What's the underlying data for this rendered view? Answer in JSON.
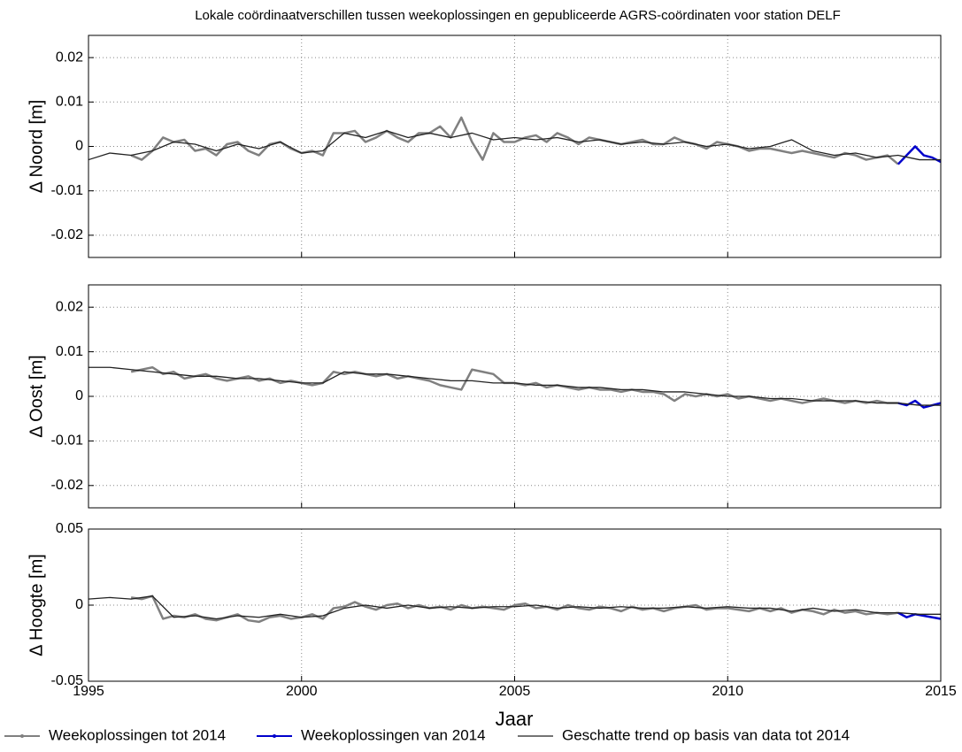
{
  "title": "Lokale coördinaatverschillen tussen weekoplossingen en gepubliceerde AGRS-coördinaten voor station DELF",
  "xlabel": "Jaar",
  "chart_data": [
    {
      "type": "line",
      "ylabel": "Δ Noord [m]",
      "xlim": [
        1995,
        2015
      ],
      "ylim": [
        -0.025,
        0.025
      ],
      "yticks": [
        -0.02,
        -0.01,
        0,
        0.01,
        0.02
      ],
      "grid": true,
      "series": [
        {
          "name": "Weekoplossingen tot 2014",
          "color": "#808080",
          "x": [
            1996,
            1996.25,
            1996.5,
            1996.75,
            1997,
            1997.25,
            1997.5,
            1997.75,
            1998,
            1998.25,
            1998.5,
            1998.75,
            1999,
            1999.25,
            1999.5,
            1999.75,
            2000,
            2000.25,
            2000.5,
            2000.75,
            2001,
            2001.25,
            2001.5,
            2001.75,
            2002,
            2002.25,
            2002.5,
            2002.75,
            2003,
            2003.25,
            2003.5,
            2003.75,
            2004,
            2004.25,
            2004.5,
            2004.75,
            2005,
            2005.25,
            2005.5,
            2005.75,
            2006,
            2006.25,
            2006.5,
            2006.75,
            2007,
            2007.25,
            2007.5,
            2007.75,
            2008,
            2008.25,
            2008.5,
            2008.75,
            2009,
            2009.25,
            2009.5,
            2009.75,
            2010,
            2010.25,
            2010.5,
            2010.75,
            2011,
            2011.25,
            2011.5,
            2011.75,
            2012,
            2012.25,
            2012.5,
            2012.75,
            2013,
            2013.25,
            2013.5,
            2013.75,
            2014
          ],
          "values": [
            -0.002,
            -0.003,
            -0.001,
            0.002,
            0.001,
            0.0015,
            -0.001,
            -0.0005,
            -0.002,
            0.0005,
            0.001,
            -0.001,
            -0.002,
            0.0005,
            0.001,
            -0.0005,
            -0.0015,
            -0.001,
            -0.002,
            0.003,
            0.003,
            0.0035,
            0.001,
            0.002,
            0.0035,
            0.002,
            0.001,
            0.003,
            0.003,
            0.0045,
            0.002,
            0.0065,
            0.001,
            -0.003,
            0.003,
            0.001,
            0.001,
            0.002,
            0.0025,
            0.001,
            0.003,
            0.002,
            0.0005,
            0.002,
            0.0015,
            0.001,
            0.0005,
            0.001,
            0.0015,
            0.0005,
            0.0005,
            0.002,
            0.001,
            0.0005,
            -0.0005,
            0.001,
            0.0005,
            0,
            -0.001,
            -0.0005,
            -0.0005,
            -0.001,
            -0.0015,
            -0.001,
            -0.0015,
            -0.002,
            -0.0025,
            -0.0015,
            -0.002,
            -0.003,
            -0.0025,
            -0.002,
            -0.004
          ]
        },
        {
          "name": "Weekoplossingen van 2014",
          "color": "#0000cc",
          "x": [
            2014,
            2014.2,
            2014.4,
            2014.6,
            2014.8,
            2015
          ],
          "values": [
            -0.004,
            -0.002,
            0,
            -0.002,
            -0.0025,
            -0.0035
          ]
        },
        {
          "name": "Geschatte trend op basis van data tot 2014",
          "color": "#222222",
          "x": [
            1995,
            1995.5,
            1996,
            1996.5,
            1997,
            1997.5,
            1998,
            1998.5,
            1999,
            1999.5,
            2000,
            2000.5,
            2001,
            2001.5,
            2002,
            2002.5,
            2003,
            2003.5,
            2004,
            2004.5,
            2005,
            2005.5,
            2006,
            2006.5,
            2007,
            2007.5,
            2008,
            2008.5,
            2009,
            2009.5,
            2010,
            2010.5,
            2011,
            2011.5,
            2012,
            2012.5,
            2013,
            2013.5,
            2014,
            2014.5,
            2015
          ],
          "values": [
            -0.003,
            -0.0015,
            -0.002,
            -0.001,
            0.001,
            0.0005,
            -0.001,
            0.0005,
            -0.0005,
            0.001,
            -0.0015,
            -0.001,
            0.003,
            0.002,
            0.0035,
            0.002,
            0.003,
            0.002,
            0.003,
            0.0015,
            0.002,
            0.0015,
            0.002,
            0.001,
            0.0015,
            0.0005,
            0.001,
            0.0005,
            0.001,
            0,
            0.0005,
            -0.0005,
            0,
            0.0015,
            -0.001,
            -0.002,
            -0.0015,
            -0.0025,
            -0.002,
            -0.003,
            -0.003
          ]
        }
      ]
    },
    {
      "type": "line",
      "ylabel": "Δ Oost [m]",
      "xlim": [
        1995,
        2015
      ],
      "ylim": [
        -0.025,
        0.025
      ],
      "yticks": [
        -0.02,
        -0.01,
        0,
        0.01,
        0.02
      ],
      "grid": true,
      "series": [
        {
          "color": "#808080",
          "x": [
            1996,
            1996.25,
            1996.5,
            1996.75,
            1997,
            1997.25,
            1997.5,
            1997.75,
            1998,
            1998.25,
            1998.5,
            1998.75,
            1999,
            1999.25,
            1999.5,
            1999.75,
            2000,
            2000.25,
            2000.5,
            2000.75,
            2001,
            2001.25,
            2001.5,
            2001.75,
            2002,
            2002.25,
            2002.5,
            2002.75,
            2003,
            2003.25,
            2003.5,
            2003.75,
            2004,
            2004.25,
            2004.5,
            2004.75,
            2005,
            2005.25,
            2005.5,
            2005.75,
            2006,
            2006.25,
            2006.5,
            2006.75,
            2007,
            2007.25,
            2007.5,
            2007.75,
            2008,
            2008.25,
            2008.5,
            2008.75,
            2009,
            2009.25,
            2009.5,
            2009.75,
            2010,
            2010.25,
            2010.5,
            2010.75,
            2011,
            2011.25,
            2011.5,
            2011.75,
            2012,
            2012.25,
            2012.5,
            2012.75,
            2013,
            2013.25,
            2013.5,
            2013.75,
            2014
          ],
          "values": [
            0.0055,
            0.006,
            0.0065,
            0.005,
            0.0055,
            0.004,
            0.0045,
            0.005,
            0.004,
            0.0035,
            0.004,
            0.0045,
            0.0035,
            0.004,
            0.003,
            0.0035,
            0.003,
            0.0025,
            0.003,
            0.0055,
            0.005,
            0.0055,
            0.005,
            0.0045,
            0.005,
            0.004,
            0.0045,
            0.004,
            0.0035,
            0.0025,
            0.002,
            0.0015,
            0.006,
            0.0055,
            0.005,
            0.003,
            0.003,
            0.0025,
            0.003,
            0.002,
            0.0025,
            0.002,
            0.0015,
            0.002,
            0.0015,
            0.0015,
            0.001,
            0.0015,
            0.001,
            0.001,
            0.0005,
            -0.001,
            0.0005,
            0,
            0.0005,
            0,
            0.0005,
            -0.0005,
            0,
            -0.0005,
            -0.001,
            -0.0005,
            -0.001,
            -0.0015,
            -0.001,
            -0.0005,
            -0.001,
            -0.0015,
            -0.001,
            -0.0015,
            -0.001,
            -0.0015,
            -0.0015
          ]
        },
        {
          "color": "#0000cc",
          "x": [
            2014,
            2014.2,
            2014.4,
            2014.6,
            2014.8,
            2015
          ],
          "values": [
            -0.0015,
            -0.002,
            -0.001,
            -0.0025,
            -0.002,
            -0.0015
          ]
        },
        {
          "color": "#222222",
          "x": [
            1995,
            1995.5,
            1996,
            1996.5,
            1997,
            1997.5,
            1998,
            1998.5,
            1999,
            1999.5,
            2000,
            2000.5,
            2001,
            2001.5,
            2002,
            2002.5,
            2003,
            2003.5,
            2004,
            2004.5,
            2005,
            2005.5,
            2006,
            2006.5,
            2007,
            2007.5,
            2008,
            2008.5,
            2009,
            2009.5,
            2010,
            2010.5,
            2011,
            2011.5,
            2012,
            2012.5,
            2013,
            2013.5,
            2014,
            2014.5,
            2015
          ],
          "values": [
            0.0065,
            0.0065,
            0.006,
            0.0055,
            0.005,
            0.0045,
            0.0045,
            0.004,
            0.004,
            0.0035,
            0.003,
            0.003,
            0.0055,
            0.005,
            0.005,
            0.0045,
            0.004,
            0.0035,
            0.0035,
            0.003,
            0.003,
            0.0025,
            0.0025,
            0.002,
            0.002,
            0.0015,
            0.0015,
            0.001,
            0.001,
            0.0005,
            0,
            0,
            -0.0005,
            -0.0005,
            -0.001,
            -0.001,
            -0.001,
            -0.0015,
            -0.0015,
            -0.002,
            -0.002
          ]
        }
      ]
    },
    {
      "type": "line",
      "ylabel": "Δ Hoogte [m]",
      "xlim": [
        1995,
        2015
      ],
      "ylim": [
        -0.05,
        0.05
      ],
      "yticks": [
        -0.05,
        0,
        0.05
      ],
      "xticks": [
        1995,
        2000,
        2005,
        2010,
        2015
      ],
      "grid": true,
      "series": [
        {
          "color": "#808080",
          "x": [
            1996,
            1996.25,
            1996.5,
            1996.75,
            1997,
            1997.25,
            1997.5,
            1997.75,
            1998,
            1998.25,
            1998.5,
            1998.75,
            1999,
            1999.25,
            1999.5,
            1999.75,
            2000,
            2000.25,
            2000.5,
            2000.75,
            2001,
            2001.25,
            2001.5,
            2001.75,
            2002,
            2002.25,
            2002.5,
            2002.75,
            2003,
            2003.25,
            2003.5,
            2003.75,
            2004,
            2004.25,
            2004.5,
            2004.75,
            2005,
            2005.25,
            2005.5,
            2005.75,
            2006,
            2006.25,
            2006.5,
            2006.75,
            2007,
            2007.25,
            2007.5,
            2007.75,
            2008,
            2008.25,
            2008.5,
            2008.75,
            2009,
            2009.25,
            2009.5,
            2009.75,
            2010,
            2010.25,
            2010.5,
            2010.75,
            2011,
            2011.25,
            2011.5,
            2011.75,
            2012,
            2012.25,
            2012.5,
            2012.75,
            2013,
            2013.25,
            2013.5,
            2013.75,
            2014
          ],
          "values": [
            0.005,
            0.004,
            0.006,
            -0.009,
            -0.007,
            -0.008,
            -0.006,
            -0.009,
            -0.01,
            -0.008,
            -0.006,
            -0.01,
            -0.011,
            -0.008,
            -0.007,
            -0.009,
            -0.008,
            -0.006,
            -0.009,
            -0.002,
            -0.001,
            0.002,
            -0.001,
            -0.003,
            0,
            0.001,
            -0.002,
            0,
            -0.002,
            -0.001,
            -0.003,
            0,
            -0.002,
            -0.001,
            -0.002,
            -0.003,
            0,
            0.001,
            -0.002,
            -0.001,
            -0.003,
            0,
            -0.002,
            -0.003,
            -0.001,
            -0.002,
            -0.004,
            -0.001,
            -0.003,
            -0.002,
            -0.004,
            -0.002,
            -0.001,
            0,
            -0.003,
            -0.002,
            -0.002,
            -0.003,
            -0.004,
            -0.002,
            -0.004,
            -0.002,
            -0.005,
            -0.003,
            -0.004,
            -0.006,
            -0.003,
            -0.005,
            -0.004,
            -0.006,
            -0.005,
            -0.006,
            -0.005
          ]
        },
        {
          "color": "#0000cc",
          "x": [
            2014,
            2014.2,
            2014.4,
            2014.6,
            2014.8,
            2015
          ],
          "values": [
            -0.005,
            -0.008,
            -0.006,
            -0.007,
            -0.008,
            -0.009
          ]
        },
        {
          "color": "#222222",
          "x": [
            1995,
            1995.5,
            1996,
            1996.5,
            1997,
            1997.5,
            1998,
            1998.5,
            1999,
            1999.5,
            2000,
            2000.5,
            2001,
            2001.5,
            2002,
            2002.5,
            2003,
            2003.5,
            2004,
            2004.5,
            2005,
            2005.5,
            2006,
            2006.5,
            2007,
            2007.5,
            2008,
            2008.5,
            2009,
            2009.5,
            2010,
            2010.5,
            2011,
            2011.5,
            2012,
            2012.5,
            2013,
            2013.5,
            2014,
            2014.5,
            2015
          ],
          "values": [
            0.004,
            0.005,
            0.004,
            0.006,
            -0.008,
            -0.007,
            -0.009,
            -0.007,
            -0.008,
            -0.006,
            -0.008,
            -0.007,
            -0.002,
            0,
            -0.002,
            0,
            -0.002,
            -0.001,
            -0.002,
            -0.001,
            -0.001,
            0,
            -0.002,
            -0.001,
            -0.002,
            -0.001,
            -0.002,
            -0.002,
            -0.001,
            -0.002,
            -0.001,
            -0.002,
            -0.002,
            -0.004,
            -0.002,
            -0.004,
            -0.003,
            -0.005,
            -0.005,
            -0.006,
            -0.006
          ]
        }
      ]
    }
  ]
}
